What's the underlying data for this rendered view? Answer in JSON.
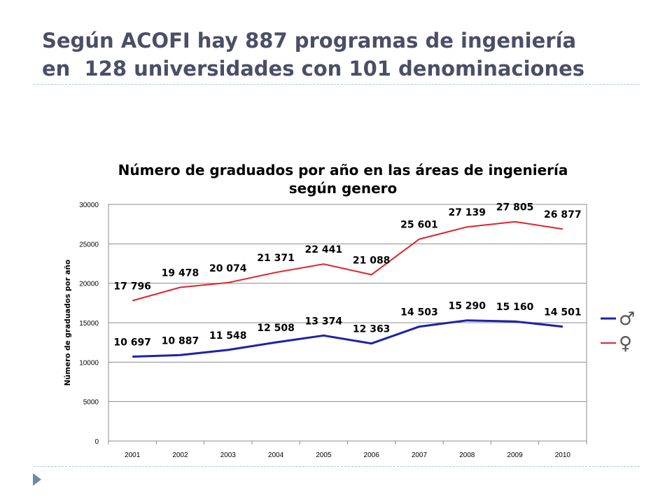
{
  "slide": {
    "title_line1": "Según ACOFI hay 887 programas de ingeniería",
    "title_line2": "en  128 universidades con 101 denominaciones"
  },
  "colors": {
    "title": "#4a4f67",
    "divider": "#a9c7d8",
    "bullet": "#6f88aa",
    "male_series": "#1c22a8",
    "female_series": "#e0232a"
  },
  "chart_data": {
    "type": "line",
    "title_line1": "Número de graduados por año en las áreas de ingeniería",
    "title_line2": "según genero",
    "xlabel": "",
    "ylabel": "Número de graduados por año",
    "categories": [
      "2001",
      "2002",
      "2003",
      "2004",
      "2005",
      "2006",
      "2007",
      "2008",
      "2009",
      "2010"
    ],
    "ylim": [
      0,
      30000
    ],
    "yticks": [
      0,
      5000,
      10000,
      15000,
      20000,
      25000,
      30000
    ],
    "grid": true,
    "legend_position": "right",
    "series": [
      {
        "name": "♂",
        "color": "#1c22a8",
        "values": [
          10697,
          10887,
          11548,
          12508,
          13374,
          12363,
          14503,
          15290,
          15160,
          14501
        ],
        "labels": [
          "10 697",
          "10 887",
          "11 548",
          "12 508",
          "13 374",
          "12 363",
          "14 503",
          "15 290",
          "15 160",
          "14 501"
        ]
      },
      {
        "name": "♀",
        "color": "#e0232a",
        "values": [
          17796,
          19478,
          20074,
          21371,
          22441,
          21088,
          25601,
          27139,
          27805,
          26877
        ],
        "labels": [
          "17 796",
          "19 478",
          "20 074",
          "21 371",
          "22 441",
          "21 088",
          "25 601",
          "27 139",
          "27 805",
          "26 877"
        ]
      }
    ]
  }
}
